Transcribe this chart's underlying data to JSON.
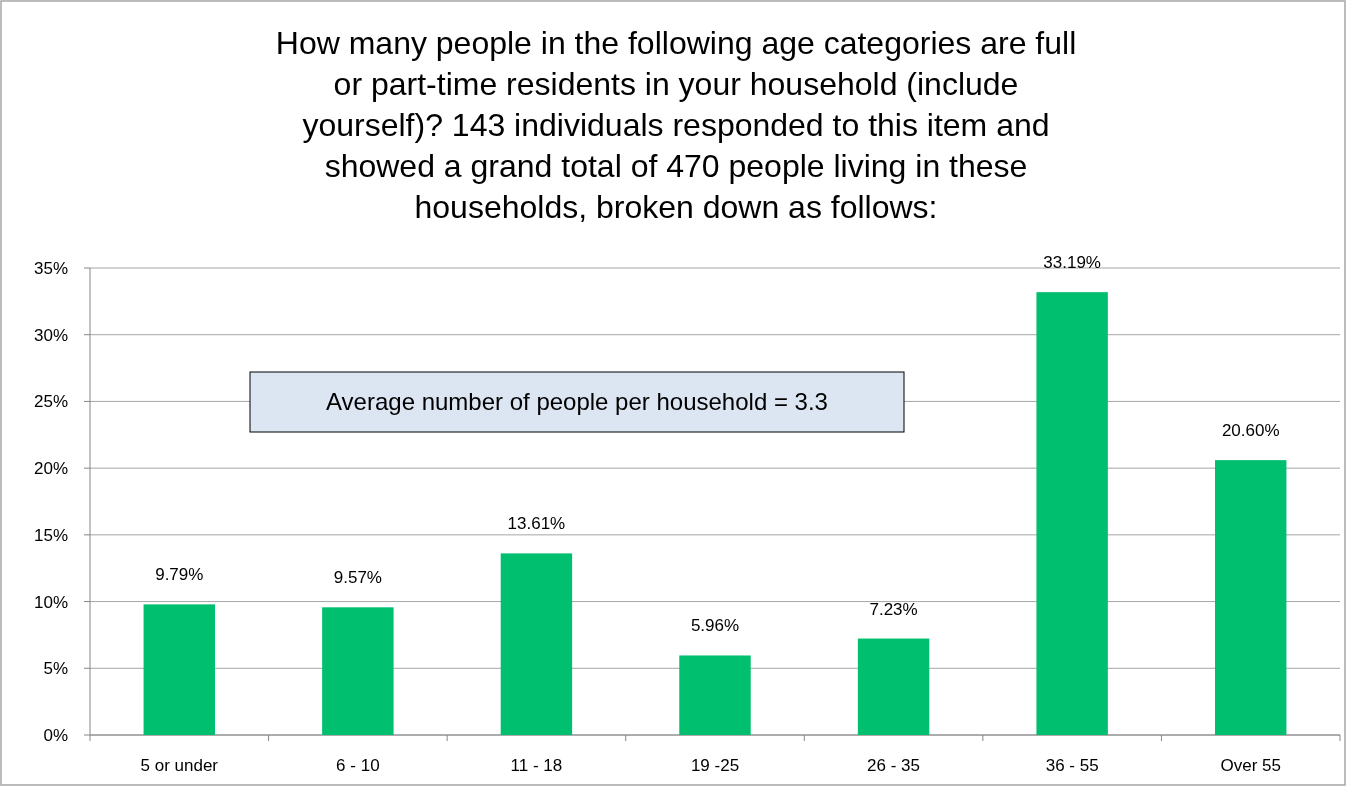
{
  "chart_data": {
    "type": "bar",
    "title": "How many people in the following age categories are full or part-time residents in your household (include yourself)? 143 individuals responded to this item and showed a grand total of 470 people living in these households, broken down as follows:",
    "categories": [
      "5 or under",
      "6 - 10",
      "11 - 18",
      "19 -25",
      "26 - 35",
      "36 - 55",
      "Over 55"
    ],
    "values": [
      9.79,
      9.57,
      13.61,
      5.96,
      7.23,
      33.19,
      20.6
    ],
    "value_labels": [
      "9.79%",
      "9.57%",
      "13.61%",
      "5.96%",
      "7.23%",
      "33.19%",
      "20.60%"
    ],
    "color": "#00bf6f",
    "ylim": [
      0,
      35
    ],
    "yticks": [
      {
        "value": 0,
        "label": "0%"
      },
      {
        "value": 5,
        "label": "5%"
      },
      {
        "value": 10,
        "label": "10%"
      },
      {
        "value": 15,
        "label": "15%"
      },
      {
        "value": 20,
        "label": "20%"
      },
      {
        "value": 25,
        "label": "25%"
      },
      {
        "value": 30,
        "label": "30%"
      },
      {
        "value": 35,
        "label": "35%"
      }
    ],
    "grid": "y",
    "annotations": [
      "Average number of people per household = 3.3"
    ]
  }
}
